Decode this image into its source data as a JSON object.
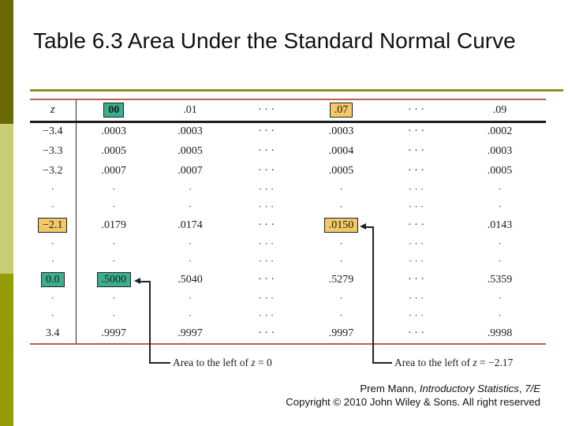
{
  "slide": {
    "title": "Table 6.3 Area Under the Standard Normal Curve"
  },
  "colors": {
    "sidebar_top": "#6a6a05",
    "sidebar_mid": "#c8cc72",
    "sidebar_bottom": "#939b06",
    "title_rule": "#8e8e1f",
    "table_rule_red": "#bc5f53",
    "highlight_teal": "#3aae8e",
    "highlight_yellow": "#f2c868"
  },
  "table": {
    "header": [
      {
        "text": "z",
        "style": "z"
      },
      {
        "text": "00",
        "hl": "teal",
        "bold": true
      },
      {
        "text": ".01"
      },
      {
        "text": "· · ·"
      },
      {
        "text": ".07",
        "hl": "yellow"
      },
      {
        "text": "· · ·"
      },
      {
        "text": ".09"
      }
    ],
    "rows": [
      {
        "kind": "value",
        "cells": [
          {
            "text": "−3.4"
          },
          {
            "text": ".0003"
          },
          {
            "text": ".0003"
          },
          {
            "text": "· · ·"
          },
          {
            "text": ".0003"
          },
          {
            "text": "· · ·"
          },
          {
            "text": ".0002"
          }
        ]
      },
      {
        "kind": "value",
        "cells": [
          {
            "text": "−3.3"
          },
          {
            "text": ".0005"
          },
          {
            "text": ".0005"
          },
          {
            "text": "· · ·"
          },
          {
            "text": ".0004"
          },
          {
            "text": "· · ·"
          },
          {
            "text": ".0003"
          }
        ]
      },
      {
        "kind": "value",
        "cells": [
          {
            "text": "−3.2"
          },
          {
            "text": ".0007"
          },
          {
            "text": ".0007"
          },
          {
            "text": "· · ·"
          },
          {
            "text": ".0005"
          },
          {
            "text": "· · ·"
          },
          {
            "text": ".0005"
          }
        ]
      },
      {
        "kind": "dots",
        "cells": [
          {
            "text": "·"
          },
          {
            "text": "·"
          },
          {
            "text": "·"
          },
          {
            "text": "· · ·"
          },
          {
            "text": "·"
          },
          {
            "text": "· · ·"
          },
          {
            "text": "·"
          }
        ]
      },
      {
        "kind": "dots",
        "cells": [
          {
            "text": "·"
          },
          {
            "text": "·"
          },
          {
            "text": "·"
          },
          {
            "text": "· · ·"
          },
          {
            "text": "·"
          },
          {
            "text": "· · ·"
          },
          {
            "text": "·"
          }
        ]
      },
      {
        "kind": "value",
        "cells": [
          {
            "text": "−2.1",
            "hl": "yellow"
          },
          {
            "text": ".0179"
          },
          {
            "text": ".0174"
          },
          {
            "text": "· · ·"
          },
          {
            "text": ".0150",
            "hl": "yellow"
          },
          {
            "text": "· · ·"
          },
          {
            "text": ".0143"
          }
        ]
      },
      {
        "kind": "dots",
        "cells": [
          {
            "text": "·"
          },
          {
            "text": "·"
          },
          {
            "text": "·"
          },
          {
            "text": "· · ·"
          },
          {
            "text": "·"
          },
          {
            "text": "· · ·"
          },
          {
            "text": "·"
          }
        ]
      },
      {
        "kind": "dots",
        "cells": [
          {
            "text": "·"
          },
          {
            "text": "·"
          },
          {
            "text": "·"
          },
          {
            "text": "· · ·"
          },
          {
            "text": "·"
          },
          {
            "text": "· · ·"
          },
          {
            "text": "·"
          }
        ]
      },
      {
        "kind": "value",
        "cells": [
          {
            "text": "0.0",
            "hl": "teal"
          },
          {
            "text": ".5000",
            "hl": "teal"
          },
          {
            "text": ".5040"
          },
          {
            "text": "· · ·"
          },
          {
            "text": ".5279"
          },
          {
            "text": "· · ·"
          },
          {
            "text": ".5359"
          }
        ]
      },
      {
        "kind": "dots",
        "cells": [
          {
            "text": "·"
          },
          {
            "text": "·"
          },
          {
            "text": "·"
          },
          {
            "text": "· · ·"
          },
          {
            "text": "·"
          },
          {
            "text": "· · ·"
          },
          {
            "text": "·"
          }
        ]
      },
      {
        "kind": "dots",
        "cells": [
          {
            "text": "·"
          },
          {
            "text": "·"
          },
          {
            "text": "·"
          },
          {
            "text": "· · ·"
          },
          {
            "text": "·"
          },
          {
            "text": "· · ·"
          },
          {
            "text": "·"
          }
        ]
      },
      {
        "kind": "value",
        "cells": [
          {
            "text": "3.4"
          },
          {
            "text": ".9997"
          },
          {
            "text": ".9997"
          },
          {
            "text": "· · ·"
          },
          {
            "text": ".9997"
          },
          {
            "text": "· · ·"
          },
          {
            "text": ".9998"
          }
        ]
      }
    ],
    "annotations": [
      {
        "prefix": "Area to the left of ",
        "zvar": "z",
        "suffix": " = 0"
      },
      {
        "prefix": "Area to the left of ",
        "zvar": "z",
        "suffix": " = −2.17"
      }
    ]
  },
  "footer": {
    "line1_author": "Prem Mann, ",
    "line1_book": "Introductory Statistics",
    "line1_sep": ", ",
    "line1_edition": "7/E",
    "line2": "Copyright © 2010 John Wiley & Sons. All right reserved"
  }
}
